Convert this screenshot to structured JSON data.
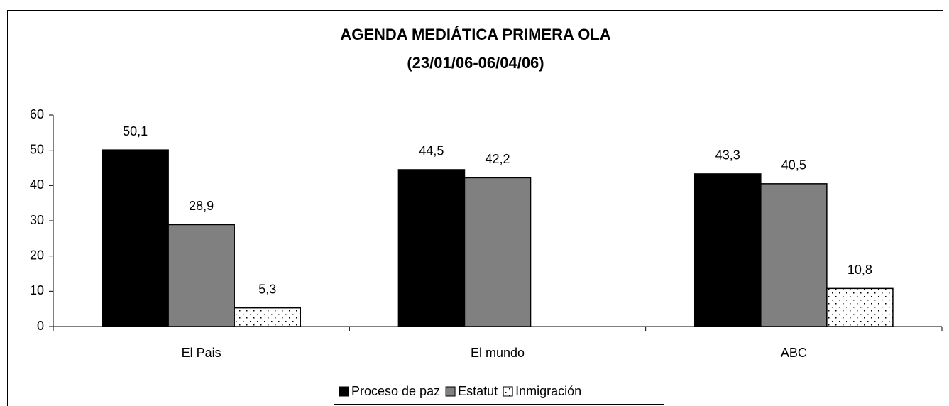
{
  "chart_data": {
    "type": "bar",
    "title": [
      "AGENDA MEDIÁTICA PRIMERA OLA",
      "(23/01/06-06/04/06)"
    ],
    "categories": [
      "El Pais",
      "El mundo",
      "ABC"
    ],
    "series": [
      {
        "name": "Proceso de paz",
        "color": "#000000",
        "values": [
          50.1,
          44.5,
          43.3
        ],
        "value_labels": [
          "50,1",
          "44,5",
          "43,3"
        ]
      },
      {
        "name": "Estatut",
        "color": "#808080",
        "values": [
          28.9,
          42.2,
          40.5
        ],
        "value_labels": [
          "28,9",
          "42,2",
          "40,5"
        ]
      },
      {
        "name": "Inmigración",
        "color": "dotted",
        "values": [
          5.3,
          null,
          10.8
        ],
        "value_labels": [
          "5,3",
          null,
          "10,8"
        ]
      }
    ],
    "ylim": [
      0,
      60
    ],
    "yticks": [
      0,
      10,
      20,
      30,
      40,
      50,
      60
    ],
    "legend": "bottom"
  }
}
